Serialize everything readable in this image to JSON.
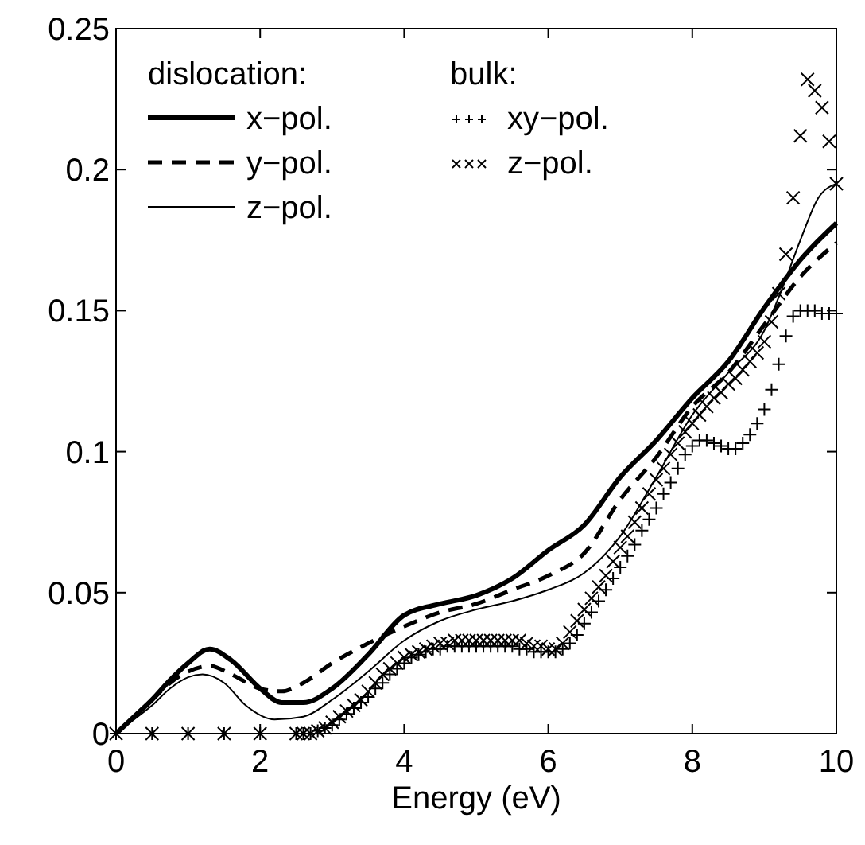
{
  "chart_data": {
    "type": "line",
    "xlabel": "Energy (eV)",
    "xlim": [
      0,
      10
    ],
    "ylim": [
      0,
      0.25
    ],
    "xticks": [
      0,
      2,
      4,
      6,
      8,
      10
    ],
    "yticks": [
      0,
      0.05,
      0.1,
      0.15,
      0.2,
      0.25
    ],
    "grid": false,
    "legend": "top left",
    "annotations": [
      "dislocation:",
      "bulk:"
    ],
    "series": [
      {
        "name": "x−pol.",
        "color": "#000000",
        "line_style": "solid",
        "x": [
          0,
          0.25,
          0.5,
          0.75,
          1,
          1.3,
          1.6,
          2,
          2.3,
          2.6,
          3,
          3.5,
          4,
          4.5,
          5,
          5.5,
          6,
          6.5,
          7,
          7.5,
          8,
          8.5,
          9,
          9.5,
          10
        ],
        "values": [
          0,
          0.006,
          0.012,
          0.019,
          0.025,
          0.03,
          0.026,
          0.016,
          0.011,
          0.011,
          0.016,
          0.028,
          0.042,
          0.046,
          0.049,
          0.055,
          0.065,
          0.074,
          0.091,
          0.104,
          0.119,
          0.132,
          0.151,
          0.168,
          0.181
        ]
      },
      {
        "name": "y−pol.",
        "color": "#000000",
        "line_style": "dashed",
        "x": [
          0,
          0.25,
          0.5,
          0.75,
          1,
          1.3,
          1.6,
          2,
          2.3,
          2.6,
          3,
          3.5,
          4,
          4.5,
          5,
          5.5,
          6,
          6.5,
          7,
          7.5,
          8,
          8.5,
          9,
          9.5,
          10
        ],
        "values": [
          0,
          0.006,
          0.012,
          0.018,
          0.022,
          0.024,
          0.021,
          0.016,
          0.015,
          0.018,
          0.025,
          0.032,
          0.038,
          0.043,
          0.046,
          0.051,
          0.056,
          0.064,
          0.083,
          0.098,
          0.116,
          0.128,
          0.145,
          0.162,
          0.174
        ]
      },
      {
        "name": "z−pol.",
        "color": "#000000",
        "line_style": "solid",
        "x": [
          0,
          0.25,
          0.5,
          0.75,
          1,
          1.2,
          1.5,
          1.8,
          2.2,
          2.6,
          3,
          3.5,
          4,
          4.5,
          5,
          5.5,
          6,
          6.5,
          7,
          7.5,
          8,
          8.5,
          9,
          9.25,
          9.5,
          9.75,
          10
        ],
        "values": [
          0,
          0.005,
          0.01,
          0.016,
          0.02,
          0.021,
          0.018,
          0.01,
          0.005,
          0.006,
          0.012,
          0.022,
          0.033,
          0.04,
          0.044,
          0.047,
          0.051,
          0.057,
          0.07,
          0.091,
          0.113,
          0.128,
          0.143,
          0.158,
          0.175,
          0.19,
          0.195
        ]
      },
      {
        "name": "xy−pol.",
        "color": "#000000",
        "type": "scatter",
        "marker": "cross",
        "x": [
          0,
          0.5,
          1,
          1.5,
          2,
          2.5,
          2.6,
          2.7,
          2.8,
          2.9,
          3,
          3.1,
          3.2,
          3.3,
          3.4,
          3.5,
          3.6,
          3.7,
          3.8,
          3.9,
          4,
          4.1,
          4.2,
          4.3,
          4.4,
          4.5,
          4.6,
          4.7,
          4.8,
          4.9,
          5,
          5.1,
          5.2,
          5.3,
          5.4,
          5.5,
          5.6,
          5.7,
          5.8,
          5.9,
          6,
          6.1,
          6.2,
          6.3,
          6.4,
          6.5,
          6.6,
          6.7,
          6.8,
          6.9,
          7,
          7.1,
          7.2,
          7.3,
          7.4,
          7.5,
          7.6,
          7.7,
          7.8,
          7.9,
          8,
          8.1,
          8.2,
          8.3,
          8.4,
          8.5,
          8.6,
          8.7,
          8.8,
          8.9,
          9,
          9.1,
          9.2,
          9.3,
          9.4,
          9.5,
          9.6,
          9.7,
          9.8,
          9.9,
          10
        ],
        "values": [
          0,
          0,
          0,
          0,
          0,
          0,
          0,
          0,
          0.001,
          0.002,
          0.003,
          0.005,
          0.007,
          0.009,
          0.011,
          0.013,
          0.016,
          0.018,
          0.021,
          0.023,
          0.025,
          0.027,
          0.028,
          0.029,
          0.03,
          0.03,
          0.031,
          0.031,
          0.031,
          0.031,
          0.031,
          0.031,
          0.031,
          0.031,
          0.031,
          0.031,
          0.03,
          0.03,
          0.029,
          0.029,
          0.029,
          0.029,
          0.03,
          0.032,
          0.035,
          0.039,
          0.043,
          0.047,
          0.051,
          0.055,
          0.059,
          0.063,
          0.067,
          0.072,
          0.076,
          0.08,
          0.085,
          0.089,
          0.094,
          0.099,
          0.102,
          0.104,
          0.104,
          0.103,
          0.102,
          0.101,
          0.101,
          0.103,
          0.106,
          0.11,
          0.115,
          0.122,
          0.131,
          0.141,
          0.148,
          0.15,
          0.15,
          0.15,
          0.149,
          0.149,
          0.149
        ]
      },
      {
        "name": "z−pol.",
        "color": "#000000",
        "type": "scatter",
        "marker": "x",
        "x": [
          0,
          0.5,
          1,
          1.5,
          2,
          2.5,
          2.6,
          2.7,
          2.8,
          2.9,
          3,
          3.1,
          3.2,
          3.3,
          3.4,
          3.5,
          3.6,
          3.7,
          3.8,
          3.9,
          4,
          4.1,
          4.2,
          4.3,
          4.4,
          4.5,
          4.6,
          4.7,
          4.8,
          4.9,
          5,
          5.1,
          5.2,
          5.3,
          5.4,
          5.5,
          5.6,
          5.7,
          5.8,
          5.9,
          6,
          6.1,
          6.2,
          6.3,
          6.4,
          6.5,
          6.6,
          6.7,
          6.8,
          6.9,
          7,
          7.1,
          7.2,
          7.3,
          7.4,
          7.5,
          7.6,
          7.7,
          7.8,
          7.9,
          8,
          8.1,
          8.2,
          8.3,
          8.4,
          8.5,
          8.6,
          8.7,
          8.8,
          8.9,
          9,
          9.1,
          9.2,
          9.3,
          9.4,
          9.5,
          9.6,
          9.7,
          9.8,
          9.9,
          10
        ],
        "values": [
          0,
          0,
          0,
          0,
          0,
          0,
          0,
          0,
          0.001,
          0.002,
          0.004,
          0.006,
          0.008,
          0.01,
          0.012,
          0.015,
          0.018,
          0.021,
          0.023,
          0.025,
          0.027,
          0.028,
          0.029,
          0.03,
          0.031,
          0.032,
          0.032,
          0.033,
          0.033,
          0.033,
          0.033,
          0.033,
          0.033,
          0.033,
          0.033,
          0.033,
          0.033,
          0.032,
          0.031,
          0.031,
          0.03,
          0.03,
          0.032,
          0.036,
          0.04,
          0.044,
          0.048,
          0.052,
          0.056,
          0.061,
          0.066,
          0.07,
          0.075,
          0.08,
          0.085,
          0.09,
          0.094,
          0.099,
          0.103,
          0.107,
          0.11,
          0.113,
          0.116,
          0.119,
          0.121,
          0.124,
          0.126,
          0.129,
          0.132,
          0.135,
          0.139,
          0.146,
          0.156,
          0.17,
          0.19,
          0.212,
          0.232,
          0.228,
          0.222,
          0.21,
          0.195
        ]
      }
    ]
  }
}
